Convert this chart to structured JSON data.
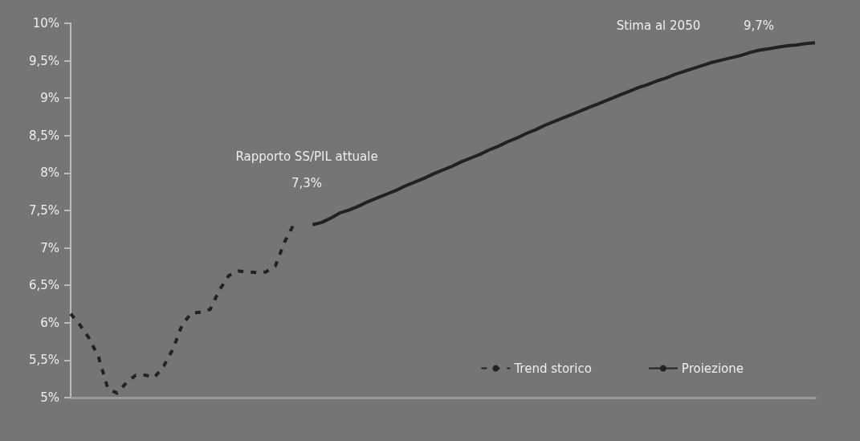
{
  "chart_data": {
    "type": "line",
    "categories": [
      null,
      null,
      null,
      null,
      null,
      null,
      null,
      null,
      null,
      null,
      null,
      null,
      null,
      null,
      null,
      null,
      null,
      null,
      null,
      null,
      null,
      null,
      null,
      null,
      null,
      null,
      null,
      null,
      null,
      null,
      null,
      null,
      null,
      null,
      null,
      null,
      null,
      null,
      null,
      null,
      null,
      null,
      null,
      null,
      null,
      null,
      null,
      null,
      null,
      null,
      null,
      null,
      null,
      null,
      null,
      null,
      null,
      null,
      null,
      null,
      null,
      null,
      null,
      null,
      null,
      null,
      null,
      null,
      null,
      null,
      null,
      null,
      null,
      null,
      null,
      null,
      null,
      null,
      null,
      null,
      null
    ],
    "series": [
      {
        "name": "Trend storico",
        "color": "#222222",
        "line_style": "dashed",
        "values": [
          6.12,
          5.97,
          5.79,
          5.54,
          5.12,
          5.06,
          5.2,
          5.3,
          5.3,
          5.27,
          5.42,
          5.65,
          5.98,
          6.13,
          6.14,
          6.18,
          6.44,
          6.63,
          6.69,
          6.68,
          6.67,
          6.68,
          6.76,
          7.08,
          7.32,
          null,
          null,
          null,
          null,
          null,
          null,
          null,
          null,
          null,
          null,
          null,
          null,
          null,
          null,
          null,
          null,
          null,
          null,
          null,
          null,
          null,
          null,
          null,
          null,
          null,
          null,
          null,
          null,
          null,
          null,
          null,
          null,
          null,
          null,
          null,
          null,
          null,
          null,
          null,
          null,
          null,
          null,
          null,
          null,
          null,
          null,
          null,
          null,
          null,
          null,
          null,
          null,
          null,
          null,
          null,
          null
        ]
      },
      {
        "name": "Proiezione",
        "color": "#222222",
        "line_style": "solid",
        "values": [
          null,
          null,
          null,
          null,
          null,
          null,
          null,
          null,
          null,
          null,
          null,
          null,
          null,
          null,
          null,
          null,
          null,
          null,
          null,
          null,
          null,
          null,
          null,
          null,
          null,
          null,
          7.31,
          7.34,
          7.4,
          7.47,
          7.51,
          7.56,
          7.62,
          7.67,
          7.72,
          7.77,
          7.83,
          7.88,
          7.93,
          7.99,
          8.04,
          8.09,
          8.15,
          8.2,
          8.25,
          8.31,
          8.36,
          8.42,
          8.47,
          8.53,
          8.58,
          8.64,
          8.69,
          8.74,
          8.79,
          8.84,
          8.89,
          8.94,
          8.99,
          9.04,
          9.09,
          9.14,
          9.18,
          9.23,
          9.27,
          9.32,
          9.36,
          9.4,
          9.44,
          9.48,
          9.51,
          9.54,
          9.57,
          9.61,
          9.64,
          9.66,
          9.68,
          9.7,
          9.71,
          9.73,
          9.74
        ]
      }
    ],
    "ylim": [
      5,
      10
    ],
    "yticks": [
      {
        "value": 5,
        "label": "5%"
      },
      {
        "value": 5.5,
        "label": "5,5%"
      },
      {
        "value": 6,
        "label": "6%"
      },
      {
        "value": 6.5,
        "label": "6,5%"
      },
      {
        "value": 7,
        "label": "7%"
      },
      {
        "value": 7.5,
        "label": "7,5%"
      },
      {
        "value": 8,
        "label": "8%"
      },
      {
        "value": 8.5,
        "label": "8,5%"
      },
      {
        "value": 9,
        "label": "9%"
      },
      {
        "value": 9.5,
        "label": "9,5%"
      },
      {
        "value": 10,
        "label": "10%"
      }
    ],
    "annotations": [
      "Rapporto SS/PIL attuale",
      "7,3%",
      "Stima al 2050",
      "9,7%"
    ],
    "grid": false,
    "legend": "bottom right",
    "marker": "none",
    "tick_labels": "y"
  }
}
